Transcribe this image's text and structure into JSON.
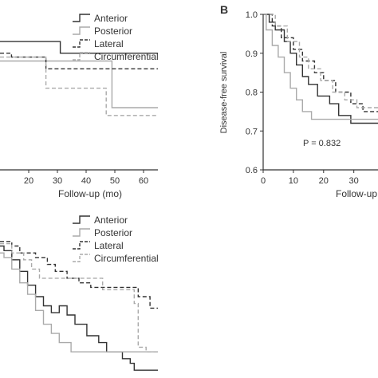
{
  "colors": {
    "anterior": "#333333",
    "posterior": "#aaaaaa",
    "lateral": "#333333",
    "circumferential": "#aaaaaa",
    "axis": "#333333"
  },
  "chart_data": [
    {
      "type": "line",
      "panel_label": "",
      "title": "",
      "xlabel": "Follow-up (mo)",
      "ylabel": "",
      "xlim": [
        10,
        65
      ],
      "ylim": [
        0.6,
        1.0
      ],
      "x_ticks": [
        20,
        30,
        40,
        50,
        60
      ],
      "x_tick_labels": [
        "20",
        "30",
        "40",
        "50",
        "60"
      ],
      "y_ticks": [],
      "y_tick_labels": [],
      "grid": false,
      "legend": "top-right",
      "series": [
        {
          "name": "Anterior",
          "style": "solid-dark",
          "steps": [
            [
              10,
              0.93
            ],
            [
              31,
              0.93
            ],
            [
              31,
              0.9
            ],
            [
              65,
              0.9
            ]
          ]
        },
        {
          "name": "Posterior",
          "style": "solid-light",
          "steps": [
            [
              10,
              0.88
            ],
            [
              49,
              0.88
            ],
            [
              49,
              0.76
            ],
            [
              65,
              0.76
            ]
          ]
        },
        {
          "name": "Lateral",
          "style": "dashed-dark",
          "steps": [
            [
              10,
              0.9
            ],
            [
              14,
              0.9
            ],
            [
              14,
              0.89
            ],
            [
              26,
              0.89
            ],
            [
              26,
              0.86
            ],
            [
              65,
              0.86
            ]
          ]
        },
        {
          "name": "Circumferential",
          "style": "dashed-light",
          "steps": [
            [
              10,
              0.89
            ],
            [
              26,
              0.89
            ],
            [
              26,
              0.81
            ],
            [
              47,
              0.81
            ],
            [
              47,
              0.74
            ],
            [
              65,
              0.74
            ]
          ]
        }
      ]
    },
    {
      "type": "line",
      "panel_label": "B",
      "title": "",
      "xlabel": "Follow-up",
      "ylabel": "Disease-free survival",
      "xlim": [
        0,
        38
      ],
      "ylim": [
        0.6,
        1.0
      ],
      "x_ticks": [
        0,
        10,
        20,
        30
      ],
      "x_tick_labels": [
        "0",
        "10",
        "20",
        "30"
      ],
      "y_ticks": [
        0.6,
        0.7,
        0.8,
        0.9,
        1.0
      ],
      "y_tick_labels": [
        "0.6",
        "0.7",
        "0.8",
        "0.9",
        "1.0"
      ],
      "grid": false,
      "annotation": "P = 0.832",
      "series": [
        {
          "name": "Anterior",
          "style": "solid-dark",
          "steps": [
            [
              0,
              1.0
            ],
            [
              2,
              1.0
            ],
            [
              2,
              0.98
            ],
            [
              4,
              0.98
            ],
            [
              4,
              0.96
            ],
            [
              7,
              0.96
            ],
            [
              7,
              0.93
            ],
            [
              9,
              0.93
            ],
            [
              9,
              0.9
            ],
            [
              11,
              0.9
            ],
            [
              11,
              0.87
            ],
            [
              13,
              0.87
            ],
            [
              13,
              0.84
            ],
            [
              15,
              0.84
            ],
            [
              15,
              0.82
            ],
            [
              18,
              0.82
            ],
            [
              18,
              0.79
            ],
            [
              22,
              0.79
            ],
            [
              22,
              0.77
            ],
            [
              25,
              0.77
            ],
            [
              25,
              0.74
            ],
            [
              29,
              0.74
            ],
            [
              29,
              0.72
            ],
            [
              38,
              0.72
            ]
          ]
        },
        {
          "name": "Posterior",
          "style": "solid-light",
          "steps": [
            [
              0,
              1.0
            ],
            [
              1,
              1.0
            ],
            [
              1,
              0.96
            ],
            [
              3,
              0.96
            ],
            [
              3,
              0.92
            ],
            [
              5,
              0.92
            ],
            [
              5,
              0.89
            ],
            [
              7,
              0.89
            ],
            [
              7,
              0.85
            ],
            [
              9,
              0.85
            ],
            [
              9,
              0.81
            ],
            [
              11,
              0.81
            ],
            [
              11,
              0.78
            ],
            [
              13,
              0.78
            ],
            [
              13,
              0.75
            ],
            [
              16,
              0.75
            ],
            [
              16,
              0.73
            ],
            [
              38,
              0.73
            ]
          ]
        },
        {
          "name": "Lateral",
          "style": "dashed-dark",
          "steps": [
            [
              0,
              1.0
            ],
            [
              3,
              1.0
            ],
            [
              3,
              0.97
            ],
            [
              6,
              0.97
            ],
            [
              6,
              0.94
            ],
            [
              10,
              0.94
            ],
            [
              10,
              0.91
            ],
            [
              13,
              0.91
            ],
            [
              13,
              0.88
            ],
            [
              17,
              0.88
            ],
            [
              17,
              0.85
            ],
            [
              20,
              0.85
            ],
            [
              20,
              0.83
            ],
            [
              24,
              0.83
            ],
            [
              24,
              0.8
            ],
            [
              29,
              0.8
            ],
            [
              29,
              0.77
            ],
            [
              33,
              0.77
            ],
            [
              33,
              0.75
            ],
            [
              38,
              0.75
            ]
          ]
        },
        {
          "name": "Circumferential",
          "style": "dashed-light",
          "steps": [
            [
              0,
              1.0
            ],
            [
              4,
              1.0
            ],
            [
              4,
              0.97
            ],
            [
              8,
              0.97
            ],
            [
              8,
              0.93
            ],
            [
              12,
              0.93
            ],
            [
              12,
              0.89
            ],
            [
              15,
              0.89
            ],
            [
              15,
              0.86
            ],
            [
              19,
              0.86
            ],
            [
              19,
              0.83
            ],
            [
              23,
              0.83
            ],
            [
              23,
              0.8
            ],
            [
              27,
              0.8
            ],
            [
              27,
              0.78
            ],
            [
              31,
              0.78
            ],
            [
              31,
              0.76
            ],
            [
              38,
              0.76
            ]
          ]
        }
      ]
    },
    {
      "type": "line",
      "panel_label": "",
      "title": "",
      "xlabel": "",
      "ylabel": "",
      "xlim": [
        0,
        40
      ],
      "ylim": [
        0.4,
        1.0
      ],
      "x_ticks": [],
      "x_tick_labels": [],
      "y_ticks": [],
      "y_tick_labels": [],
      "grid": false,
      "legend": "top-right",
      "series": [
        {
          "name": "Anterior",
          "style": "solid-dark",
          "steps": [
            [
              0,
              0.96
            ],
            [
              1,
              0.96
            ],
            [
              1,
              0.94
            ],
            [
              3,
              0.94
            ],
            [
              3,
              0.9
            ],
            [
              5,
              0.9
            ],
            [
              5,
              0.85
            ],
            [
              7,
              0.85
            ],
            [
              7,
              0.79
            ],
            [
              9,
              0.79
            ],
            [
              9,
              0.74
            ],
            [
              11,
              0.74
            ],
            [
              11,
              0.7
            ],
            [
              13,
              0.7
            ],
            [
              13,
              0.67
            ],
            [
              15,
              0.67
            ],
            [
              15,
              0.7
            ],
            [
              17,
              0.7
            ],
            [
              17,
              0.66
            ],
            [
              19,
              0.66
            ],
            [
              19,
              0.62
            ],
            [
              22,
              0.62
            ],
            [
              22,
              0.57
            ],
            [
              25,
              0.57
            ],
            [
              25,
              0.54
            ],
            [
              27,
              0.54
            ],
            [
              27,
              0.5
            ],
            [
              31,
              0.5
            ],
            [
              31,
              0.47
            ],
            [
              33,
              0.47
            ],
            [
              33,
              0.45
            ],
            [
              34,
              0.45
            ],
            [
              34,
              0.42
            ],
            [
              40,
              0.42
            ]
          ]
        },
        {
          "name": "Posterior",
          "style": "solid-light",
          "steps": [
            [
              0,
              0.93
            ],
            [
              1,
              0.93
            ],
            [
              1,
              0.91
            ],
            [
              3,
              0.91
            ],
            [
              3,
              0.86
            ],
            [
              5,
              0.86
            ],
            [
              5,
              0.8
            ],
            [
              7,
              0.8
            ],
            [
              7,
              0.75
            ],
            [
              9,
              0.75
            ],
            [
              9,
              0.68
            ],
            [
              11,
              0.68
            ],
            [
              11,
              0.62
            ],
            [
              13,
              0.62
            ],
            [
              13,
              0.58
            ],
            [
              15,
              0.58
            ],
            [
              15,
              0.54
            ],
            [
              18,
              0.54
            ],
            [
              18,
              0.5
            ],
            [
              40,
              0.5
            ]
          ]
        },
        {
          "name": "Lateral",
          "style": "dashed-dark",
          "steps": [
            [
              0,
              0.98
            ],
            [
              3,
              0.98
            ],
            [
              3,
              0.96
            ],
            [
              5,
              0.96
            ],
            [
              5,
              0.93
            ],
            [
              9,
              0.93
            ],
            [
              9,
              0.91
            ],
            [
              12,
              0.91
            ],
            [
              12,
              0.88
            ],
            [
              14,
              0.88
            ],
            [
              14,
              0.85
            ],
            [
              17,
              0.85
            ],
            [
              17,
              0.82
            ],
            [
              20,
              0.82
            ],
            [
              20,
              0.8
            ],
            [
              23,
              0.8
            ],
            [
              23,
              0.78
            ],
            [
              35,
              0.78
            ],
            [
              35,
              0.74
            ],
            [
              38,
              0.74
            ],
            [
              38,
              0.69
            ],
            [
              40,
              0.69
            ]
          ]
        },
        {
          "name": "Circumferential",
          "style": "dashed-light",
          "steps": [
            [
              0,
              0.97
            ],
            [
              3,
              0.97
            ],
            [
              3,
              0.93
            ],
            [
              6,
              0.93
            ],
            [
              6,
              0.9
            ],
            [
              8,
              0.9
            ],
            [
              8,
              0.86
            ],
            [
              10,
              0.86
            ],
            [
              10,
              0.82
            ],
            [
              26,
              0.82
            ],
            [
              26,
              0.77
            ],
            [
              34,
              0.77
            ],
            [
              34,
              0.71
            ],
            [
              35,
              0.71
            ],
            [
              35,
              0.52
            ],
            [
              37,
              0.52
            ],
            [
              37,
              0.5
            ],
            [
              40,
              0.5
            ]
          ]
        }
      ]
    }
  ]
}
